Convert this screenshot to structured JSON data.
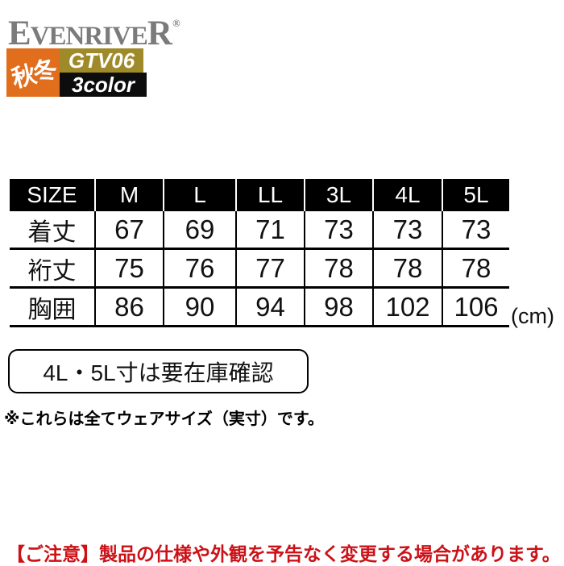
{
  "brand": {
    "first_letter": "E",
    "middle": "VENRIVE",
    "last_letter": "R",
    "mark": "®",
    "logo_color": "#7b7b7b"
  },
  "badges": {
    "season": "秋冬",
    "model": "GTV06",
    "colors": "3color",
    "season_bg": "#e06e1c",
    "model_bg": "#9f8a2a",
    "colors_bg": "#0d0d0d"
  },
  "size_table": {
    "header": [
      "SIZE",
      "M",
      "L",
      "LL",
      "3L",
      "4L",
      "5L"
    ],
    "rows": [
      {
        "label": "着丈",
        "values": [
          "67",
          "69",
          "71",
          "73",
          "73",
          "73"
        ]
      },
      {
        "label": "裄丈",
        "values": [
          "75",
          "76",
          "77",
          "78",
          "78",
          "78"
        ]
      },
      {
        "label": "胸囲",
        "values": [
          "86",
          "90",
          "94",
          "98",
          "102",
          "106"
        ]
      }
    ],
    "unit": "(cm)"
  },
  "notes": {
    "stock_note": "4L・5L寸は要在庫確認",
    "size_note": "※これらは全てウェアサイズ（実寸）です。",
    "caution": "【ご注意】製品の仕様や外観を予告なく変更する場合があります。",
    "caution_color": "#cc1117"
  }
}
